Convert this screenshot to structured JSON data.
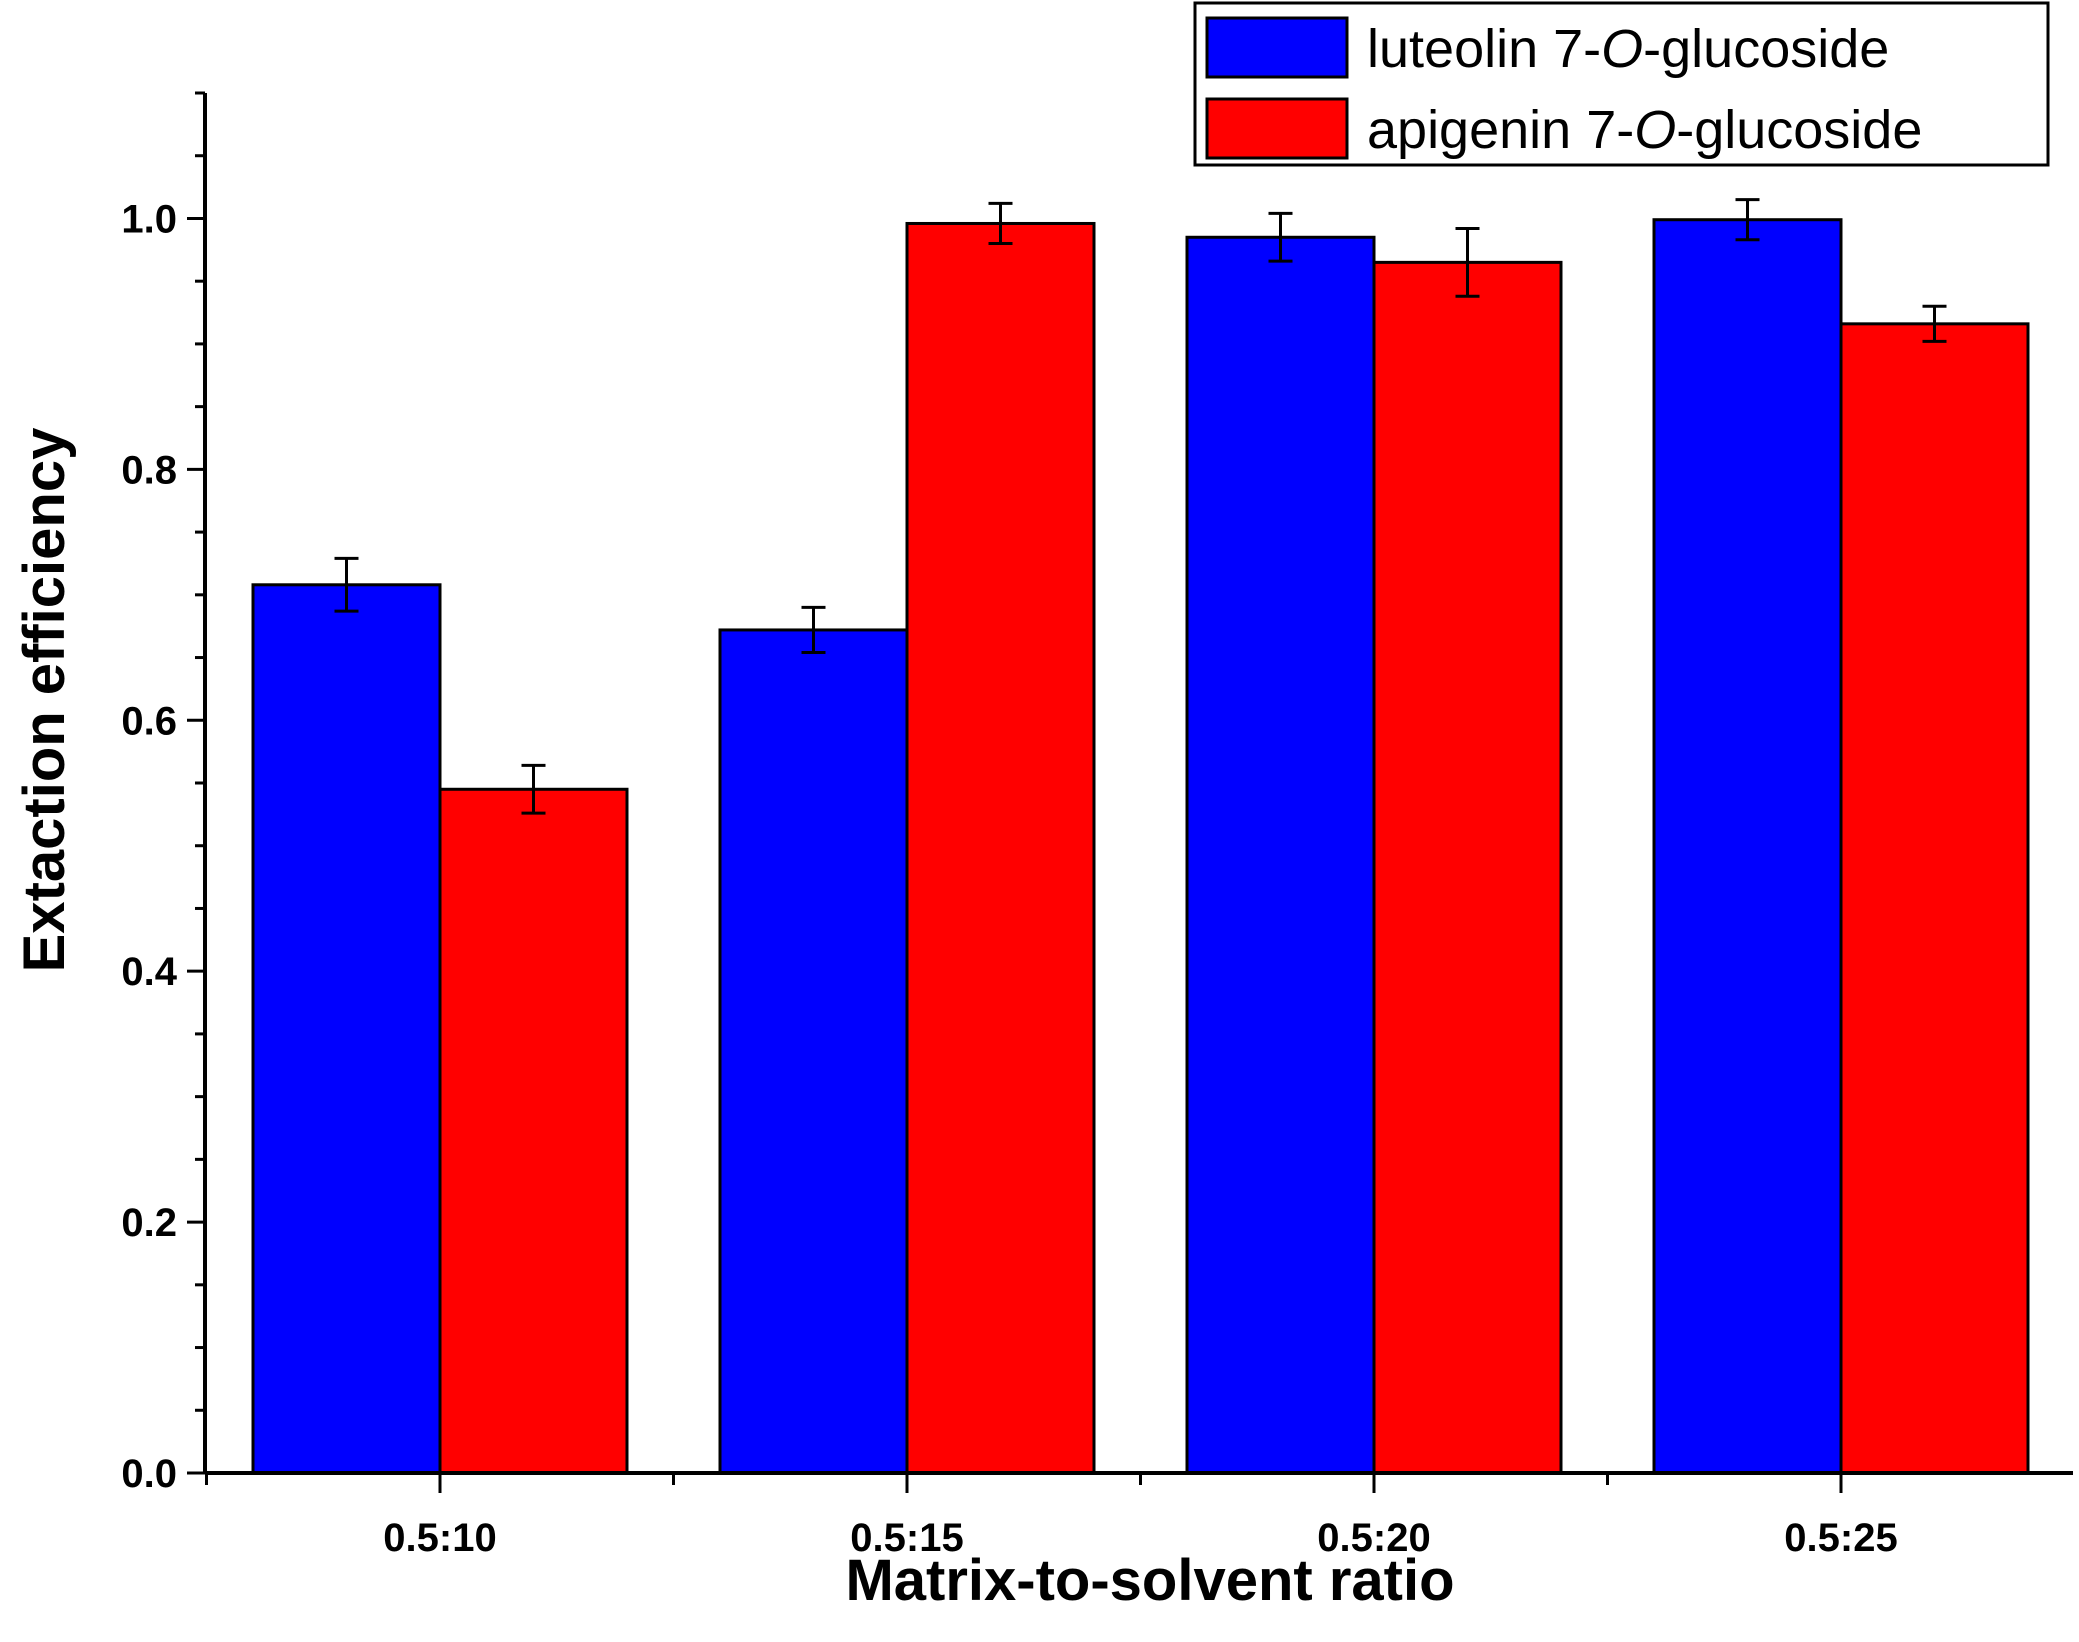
{
  "chart_data": {
    "type": "bar",
    "title": "",
    "xlabel": "Matrix-to-solvent ratio",
    "ylabel": "Extaction efficiency",
    "categories": [
      "0.5:10",
      "0.5:15",
      "0.5:20",
      "0.5:25"
    ],
    "ylim": [
      0,
      1.1
    ],
    "yticks": [
      0.0,
      0.2,
      0.4,
      0.6,
      0.8,
      1.0
    ],
    "ytick_labels": [
      "0.0",
      "0.2",
      "0.4",
      "0.6",
      "0.8",
      "1.0"
    ],
    "grid": false,
    "legend_position": "top-right",
    "series": [
      {
        "name": "luteolin 7-O-glucoside",
        "legend_prefix": "luteolin 7-",
        "legend_italic": "O",
        "legend_suffix": "-glucoside",
        "color": "#0000FF",
        "values": [
          0.708,
          0.672,
          0.985,
          0.999
        ],
        "errors": [
          0.021,
          0.018,
          0.019,
          0.016
        ]
      },
      {
        "name": "apigenin 7-O-glucoside",
        "legend_prefix": "apigenin 7-",
        "legend_italic": "O",
        "legend_suffix": "-glucoside",
        "color": "#FF0000",
        "values": [
          0.545,
          0.996,
          0.965,
          0.916
        ],
        "errors": [
          0.019,
          0.016,
          0.027,
          0.014
        ]
      }
    ]
  }
}
